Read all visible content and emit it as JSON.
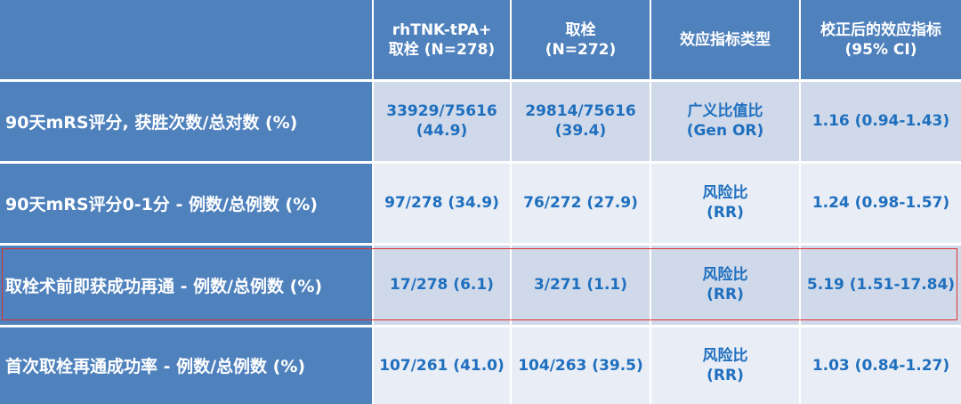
{
  "table": {
    "headers": [
      {
        "line1": "",
        "line2": ""
      },
      {
        "line1": "rhTNK-tPA+",
        "line2": "取栓 (N=278)"
      },
      {
        "line1": "取栓",
        "line2": "(N=272)"
      },
      {
        "line1": "效应指标类型",
        "line2": ""
      },
      {
        "line1": "校正后的效应指标",
        "line2": "(95% CI)"
      }
    ],
    "rows": [
      {
        "label": "90天mRS评分, 获胜次数/总对数 (%)",
        "a1": "33929/75616",
        "a2": "(44.9)",
        "b1": "29814/75616",
        "b2": "(39.4)",
        "t1": "广义比值比",
        "t2": "(Gen OR)",
        "effect": "1.16 (0.94-1.43)"
      },
      {
        "label": "90天mRS评分0-1分 - 例数/总例数 (%)",
        "a1": "97/278 (34.9)",
        "a2": "",
        "b1": "76/272 (27.9)",
        "b2": "",
        "t1": "风险比",
        "t2": "(RR)",
        "effect": "1.24 (0.98-1.57)"
      },
      {
        "label": "取栓术前即获成功再通 - 例数/总例数 (%)",
        "a1": "17/278 (6.1)",
        "a2": "",
        "b1": "3/271 (1.1)",
        "b2": "",
        "t1": "风险比",
        "t2": "(RR)",
        "effect": "5.19 (1.51-17.84)"
      },
      {
        "label": "首次取栓再通成功率 - 例数/总例数 (%)",
        "a1": "107/261 (41.0)",
        "a2": "",
        "b1": "104/263 (39.5)",
        "b2": "",
        "t1": "风险比",
        "t2": "(RR)",
        "effect": "1.03 (0.84-1.27)"
      }
    ],
    "highlighted_row": 2,
    "colors": {
      "header": "#4f81bd",
      "value_text": "#1f6fbf",
      "highlight": "#e03030"
    }
  }
}
